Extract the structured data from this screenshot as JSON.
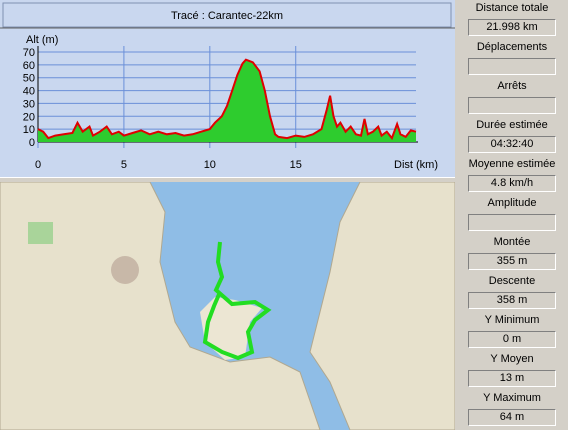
{
  "chart_data": {
    "type": "area",
    "title": "Tracé : Carantec-22km",
    "ylabel": "Alt (m)",
    "xlabel": "Dist (km)",
    "x": [
      0,
      0.3,
      0.6,
      1,
      1.5,
      2,
      2.3,
      2.6,
      3,
      3.2,
      3.6,
      4,
      4.3,
      4.7,
      5,
      5.5,
      6,
      6.5,
      7,
      7.5,
      8,
      8.5,
      9,
      9.5,
      10,
      10.3,
      10.7,
      11,
      11.3,
      11.6,
      11.9,
      12.1,
      12.5,
      12.9,
      13.2,
      13.5,
      13.8,
      14,
      14.5,
      15,
      15.5,
      16,
      16.5,
      16.8,
      17,
      17.2,
      17.4,
      17.6,
      17.9,
      18.2,
      18.5,
      18.8,
      19,
      19.2,
      19.5,
      19.8,
      20,
      20.3,
      20.6,
      20.9,
      21.1,
      21.4,
      21.7,
      22
    ],
    "series": [
      {
        "color": "#2ecc2e",
        "line_color": "#e00000",
        "values": [
          10,
          8,
          3,
          5,
          6,
          7,
          15,
          8,
          12,
          5,
          8,
          12,
          6,
          8,
          5,
          7,
          9,
          6,
          8,
          6,
          7,
          5,
          6,
          8,
          10,
          15,
          20,
          28,
          40,
          52,
          61,
          64,
          62,
          55,
          40,
          20,
          6,
          4,
          3,
          5,
          4,
          6,
          10,
          25,
          36,
          20,
          12,
          15,
          8,
          12,
          6,
          5,
          18,
          6,
          8,
          12,
          5,
          8,
          3,
          14,
          6,
          4,
          9,
          8
        ]
      }
    ],
    "xlim": [
      0,
      22
    ],
    "xticks": [
      0,
      5,
      10,
      15
    ],
    "ylim": [
      0,
      70
    ],
    "yticks": [
      0,
      10,
      20,
      30,
      40,
      50,
      60,
      70
    ],
    "grid": true,
    "grid_color": "#6a8fd8"
  },
  "stats": [
    {
      "label": "Distance totale",
      "value": "21.998 km"
    },
    {
      "label": "Déplacements"
    },
    {
      "label": "Arrêts"
    },
    {
      "label": "Durée estimée",
      "value": "04:32:40"
    },
    {
      "label": "Moyenne estimée",
      "value": "4.8 km/h"
    },
    {
      "label": "Amplitude"
    },
    {
      "label": "Montée",
      "value": "355 m"
    },
    {
      "label": "Descente",
      "value": "358 m"
    },
    {
      "label": "Y Minimum",
      "value": "0 m"
    },
    {
      "label": "Y Moyen",
      "value": "13 m"
    },
    {
      "label": "Y Maximum",
      "value": "64 m"
    }
  ]
}
